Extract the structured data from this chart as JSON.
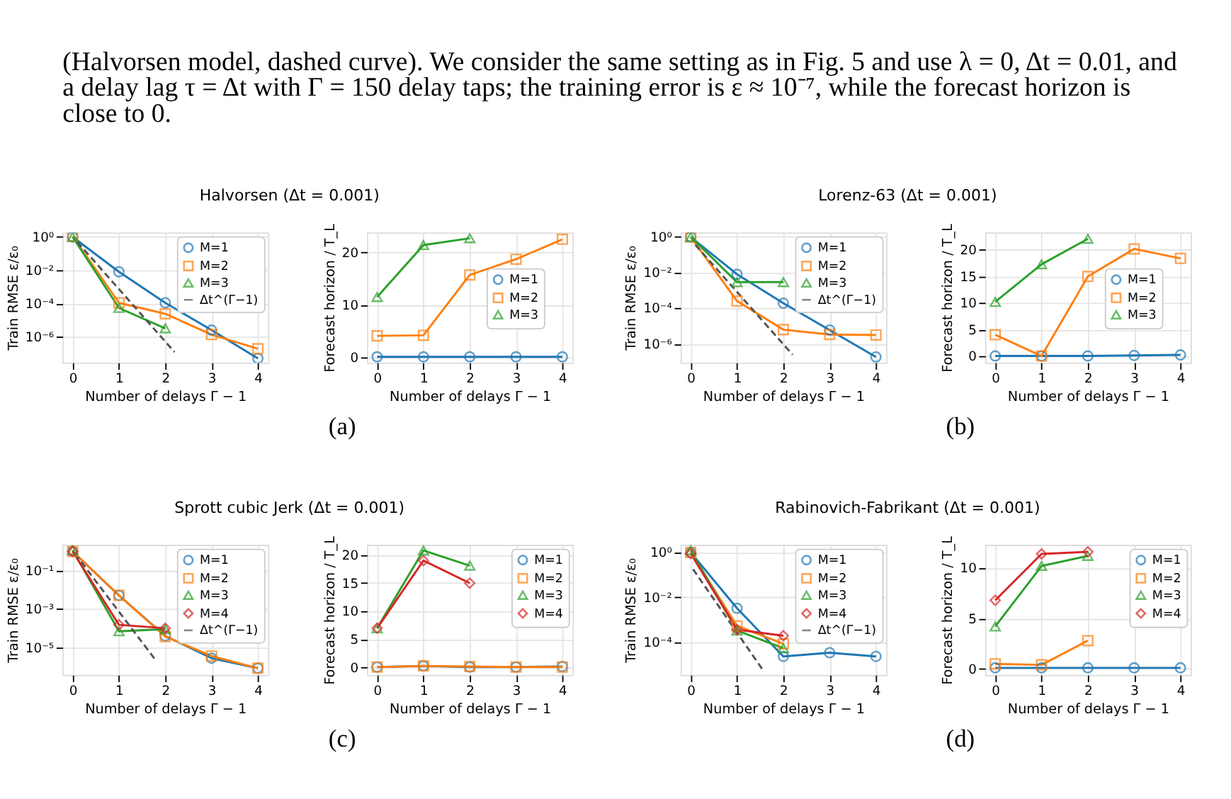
{
  "chart_data": [
    {
      "type": "line",
      "title": "Halvorsen (Δt = 0.001)",
      "xlabel": "Number of delays Γ − 1",
      "ylabel": "Train RMSE ε/ε₀",
      "log": true,
      "grid": true,
      "legend": "top right",
      "annotations": [
        "(Halvorsen model, dashed curve). We consider the same setting as in Fig. 5 and use λ = 0, Δt = 0.01, and",
        "a delay lag τ = Δt with Γ = 150 delay taps; the training error is ε ≈ 10⁻⁷, while the forecast horizon is",
        "close to 0.",
        "(a)"
      ],
      "x": [
        0,
        1,
        2,
        3,
        4
      ],
      "xlim": [
        -0.22,
        4.22
      ],
      "xticks": [
        0,
        1,
        2,
        3,
        4
      ],
      "ylim": [
        2.8e-08,
        1.85
      ],
      "yticks": [
        {
          "value": 1,
          "label": "10⁰"
        },
        {
          "value": 0.01,
          "label": "10⁻²"
        },
        {
          "value": 0.0001,
          "label": "10⁻⁴"
        },
        {
          "value": 1e-06,
          "label": "10⁻⁶"
        }
      ],
      "series": [
        {
          "name": "M=1",
          "color": "#1f77b4",
          "marker": "circle",
          "line_style": "solid",
          "values": [
            1,
            0.008,
            0.00011,
            2.5e-06,
            5e-08
          ]
        },
        {
          "name": "M=2",
          "color": "#ff7f0e",
          "marker": "square",
          "line_style": "solid",
          "values": [
            1.1,
            0.00011,
            2.4e-05,
            1.35e-06,
            1.9e-07
          ]
        },
        {
          "name": "M=3",
          "color": "#2ca02c",
          "marker": "triangle",
          "line_style": "solid",
          "x": [
            0,
            1,
            2
          ],
          "values": [
            1,
            5.4e-05,
            3.2e-06
          ]
        },
        {
          "name": "Δt^(Γ−1)",
          "color": "#555555",
          "marker": "none",
          "line_style": "dashed",
          "x": [
            0.1,
            2.2
          ],
          "values": [
            0.5,
            1.2e-07
          ]
        }
      ]
    },
    {
      "type": "line",
      "xlabel": "Number of delays Γ − 1",
      "ylabel": "Forecast horizon / T_L",
      "grid": true,
      "legend": "right",
      "x": [
        0,
        1,
        2,
        3,
        4
      ],
      "xlim": [
        -0.22,
        4.22
      ],
      "xticks": [
        0,
        1,
        2,
        3,
        4
      ],
      "ylim": [
        -1.0,
        23.8
      ],
      "yticks": [
        0,
        10,
        20
      ],
      "series": [
        {
          "name": "M=1",
          "color": "#1f77b4",
          "marker": "circle",
          "line_style": "solid",
          "values": [
            0.1,
            0.1,
            0.1,
            0.1,
            0.1
          ]
        },
        {
          "name": "M=2",
          "color": "#ff7f0e",
          "marker": "square",
          "line_style": "solid",
          "values": [
            4.1,
            4.2,
            15.7,
            18.7,
            22.5
          ]
        },
        {
          "name": "M=3",
          "color": "#2ca02c",
          "marker": "triangle",
          "line_style": "solid",
          "x": [
            0,
            1,
            2
          ],
          "values": [
            11.5,
            21.4,
            22.7
          ]
        }
      ]
    },
    {
      "type": "line",
      "title": "Lorenz-63 (Δt = 0.001)",
      "xlabel": "Number of delays Γ − 1",
      "ylabel": "Train RMSE ε/ε₀",
      "log": true,
      "grid": true,
      "legend": "top right",
      "annotations": [
        "(b)"
      ],
      "x": [
        0,
        1,
        2,
        3,
        4
      ],
      "xlim": [
        -0.22,
        4.22
      ],
      "xticks": [
        0,
        1,
        2,
        3,
        4
      ],
      "ylim": [
        8.7e-08,
        1.8
      ],
      "yticks": [
        {
          "value": 1,
          "label": "10⁰"
        },
        {
          "value": 0.01,
          "label": "10⁻²"
        },
        {
          "value": 0.0001,
          "label": "10⁻⁴"
        },
        {
          "value": 1e-06,
          "label": "10⁻⁶"
        }
      ],
      "series": [
        {
          "name": "M=1",
          "color": "#1f77b4",
          "marker": "circle",
          "line_style": "solid",
          "values": [
            1,
            0.008,
            0.00019,
            5.9e-06,
            1.8e-07
          ]
        },
        {
          "name": "M=2",
          "color": "#ff7f0e",
          "marker": "square",
          "line_style": "solid",
          "values": [
            1,
            0.00025,
            6.2e-06,
            3.3e-06,
            3.1e-06
          ]
        },
        {
          "name": "M=3",
          "color": "#2ca02c",
          "marker": "triangle",
          "line_style": "solid",
          "x": [
            0,
            1,
            2
          ],
          "values": [
            1,
            0.0029,
            0.0029
          ]
        },
        {
          "name": "Δt^(Γ−1)",
          "color": "#555555",
          "marker": "none",
          "line_style": "dashed",
          "x": [
            0.1,
            2.2
          ],
          "values": [
            0.36,
            2.4e-07
          ]
        }
      ]
    },
    {
      "type": "line",
      "xlabel": "Number of delays Γ − 1",
      "ylabel": "Forecast horizon / T_L",
      "grid": true,
      "legend": "right",
      "x": [
        0,
        1,
        2,
        3,
        4
      ],
      "xlim": [
        -0.22,
        4.22
      ],
      "xticks": [
        0,
        1,
        2,
        3,
        4
      ],
      "ylim": [
        -1.25,
        23.3
      ],
      "yticks": [
        0,
        5,
        10,
        15,
        20
      ],
      "series": [
        {
          "name": "M=1",
          "color": "#1f77b4",
          "marker": "circle",
          "line_style": "solid",
          "values": [
            0.0,
            0.0,
            0.0,
            0.1,
            0.2
          ]
        },
        {
          "name": "M=2",
          "color": "#ff7f0e",
          "marker": "square",
          "line_style": "solid",
          "values": [
            4.0,
            0.0,
            15.0,
            20.2,
            18.4
          ]
        },
        {
          "name": "M=3",
          "color": "#2ca02c",
          "marker": "triangle",
          "line_style": "solid",
          "x": [
            0,
            1,
            2
          ],
          "values": [
            10.2,
            17.3,
            22.1
          ]
        }
      ]
    },
    {
      "type": "line",
      "title": "Sprott cubic Jerk (Δt = 0.001)",
      "xlabel": "Number of delays Γ − 1",
      "ylabel": "Train RMSE ε/ε₀",
      "log": true,
      "grid": true,
      "legend": "top right",
      "annotations": [
        "(c)"
      ],
      "x": [
        0,
        1,
        2,
        3,
        4
      ],
      "xlim": [
        -0.22,
        4.22
      ],
      "xticks": [
        0,
        1,
        2,
        3,
        4
      ],
      "ylim": [
        3.8e-07,
        2.1
      ],
      "yticks": [
        {
          "value": 0.1,
          "label": "10⁻¹"
        },
        {
          "value": 0.001,
          "label": "10⁻³"
        },
        {
          "value": 1e-05,
          "label": "10⁻⁵"
        }
      ],
      "series": [
        {
          "name": "M=1",
          "color": "#1f77b4",
          "marker": "circle",
          "line_style": "solid",
          "values": [
            0.95,
            0.005,
            4e-05,
            2.8e-06,
            8.5e-07
          ]
        },
        {
          "name": "M=2",
          "color": "#ff7f0e",
          "marker": "square",
          "line_style": "solid",
          "values": [
            0.95,
            0.005,
            3.7e-05,
            3.6e-06,
            8.5e-07
          ]
        },
        {
          "name": "M=3",
          "color": "#2ca02c",
          "marker": "triangle",
          "line_style": "solid",
          "x": [
            0,
            1,
            2
          ],
          "values": [
            1.1,
            6.9e-05,
            8.9e-05
          ]
        },
        {
          "name": "M=4",
          "color": "#d62728",
          "marker": "diamond",
          "line_style": "solid",
          "x": [
            0,
            1,
            2
          ],
          "values": [
            0.95,
            0.00015,
            0.0001
          ]
        },
        {
          "name": "Δt^(Γ−1)",
          "color": "#555555",
          "marker": "none",
          "line_style": "dashed",
          "x": [
            0.05,
            1.8
          ],
          "values": [
            0.73,
            2.1e-06
          ]
        }
      ]
    },
    {
      "type": "line",
      "xlabel": "Number of delays Γ − 1",
      "ylabel": "Forecast horizon / T_L",
      "grid": true,
      "legend": "top right",
      "x": [
        0,
        1,
        2,
        3,
        4
      ],
      "xlim": [
        -0.22,
        4.22
      ],
      "xticks": [
        0,
        1,
        2,
        3,
        4
      ],
      "ylim": [
        -1.3,
        21.8
      ],
      "yticks": [
        0,
        5,
        10,
        15,
        20
      ],
      "series": [
        {
          "name": "M=1",
          "color": "#1f77b4",
          "marker": "circle",
          "line_style": "solid",
          "values": [
            0.1,
            0.3,
            0.1,
            0.1,
            0.2
          ]
        },
        {
          "name": "M=2",
          "color": "#ff7f0e",
          "marker": "square",
          "line_style": "solid",
          "values": [
            0.1,
            0.3,
            0.2,
            0.1,
            0.1
          ]
        },
        {
          "name": "M=3",
          "color": "#2ca02c",
          "marker": "triangle",
          "line_style": "solid",
          "x": [
            0,
            1,
            2
          ],
          "values": [
            7.0,
            20.8,
            18.1
          ]
        },
        {
          "name": "M=4",
          "color": "#d62728",
          "marker": "diamond",
          "line_style": "solid",
          "x": [
            0,
            1,
            2
          ],
          "values": [
            7.0,
            19.0,
            15.0
          ]
        }
      ]
    },
    {
      "type": "line",
      "title": "Rabinovich-Fabrikant (Δt = 0.001)",
      "xlabel": "Number of delays Γ − 1",
      "ylabel": "Train RMSE ε/ε₀",
      "log": true,
      "grid": true,
      "legend": "top right",
      "annotations": [
        "(d)"
      ],
      "x": [
        0,
        1,
        2,
        3,
        4
      ],
      "xlim": [
        -0.22,
        4.22
      ],
      "xticks": [
        0,
        1,
        2,
        3,
        4
      ],
      "ylim": [
        3.6e-06,
        2.2
      ],
      "yticks": [
        {
          "value": 1,
          "label": "10⁰"
        },
        {
          "value": 0.01,
          "label": "10⁻²"
        },
        {
          "value": 0.0001,
          "label": "10⁻⁴"
        }
      ],
      "series": [
        {
          "name": "M=1",
          "color": "#1f77b4",
          "marker": "circle",
          "line_style": "solid",
          "values": [
            1,
            0.0033,
            2.4e-05,
            3.5e-05,
            2.4e-05
          ]
        },
        {
          "name": "M=2",
          "color": "#ff7f0e",
          "marker": "square",
          "line_style": "solid",
          "x": [
            0,
            1,
            2
          ],
          "values": [
            1,
            0.00054,
            8.7e-05
          ]
        },
        {
          "name": "M=3",
          "color": "#2ca02c",
          "marker": "triangle",
          "line_style": "solid",
          "x": [
            0,
            1,
            2
          ],
          "values": [
            1.25,
            0.00034,
            5.5e-05
          ]
        },
        {
          "name": "M=4",
          "color": "#d62728",
          "marker": "diamond",
          "line_style": "solid",
          "x": [
            0,
            1,
            2
          ],
          "values": [
            0.9,
            0.00037,
            0.0002
          ]
        },
        {
          "name": "Δt^(Γ−1)",
          "color": "#555555",
          "marker": "none",
          "line_style": "dashed",
          "x": [
            0.05,
            1.55
          ],
          "values": [
            0.18,
            6.3e-06
          ]
        }
      ]
    },
    {
      "type": "line",
      "xlabel": "Number of delays Γ − 1",
      "ylabel": "Forecast horizon / T_L",
      "grid": true,
      "legend": "top right",
      "x": [
        0,
        1,
        2,
        3,
        4
      ],
      "xlim": [
        -0.22,
        4.22
      ],
      "xticks": [
        0,
        1,
        2,
        3,
        4
      ],
      "ylim": [
        -0.6,
        12.3
      ],
      "yticks": [
        0,
        5,
        10
      ],
      "series": [
        {
          "name": "M=1",
          "color": "#1f77b4",
          "marker": "circle",
          "line_style": "solid",
          "values": [
            0.1,
            0.1,
            0.1,
            0.1,
            0.1
          ]
        },
        {
          "name": "M=2",
          "color": "#ff7f0e",
          "marker": "square",
          "line_style": "solid",
          "x": [
            0,
            1,
            2
          ],
          "values": [
            0.5,
            0.4,
            2.8
          ]
        },
        {
          "name": "M=3",
          "color": "#2ca02c",
          "marker": "triangle",
          "line_style": "solid",
          "x": [
            0,
            1,
            2
          ],
          "values": [
            4.2,
            10.2,
            11.2
          ]
        },
        {
          "name": "M=4",
          "color": "#d62728",
          "marker": "diamond",
          "line_style": "solid",
          "x": [
            0,
            1,
            2
          ],
          "values": [
            6.8,
            11.4,
            11.6
          ]
        }
      ]
    }
  ]
}
